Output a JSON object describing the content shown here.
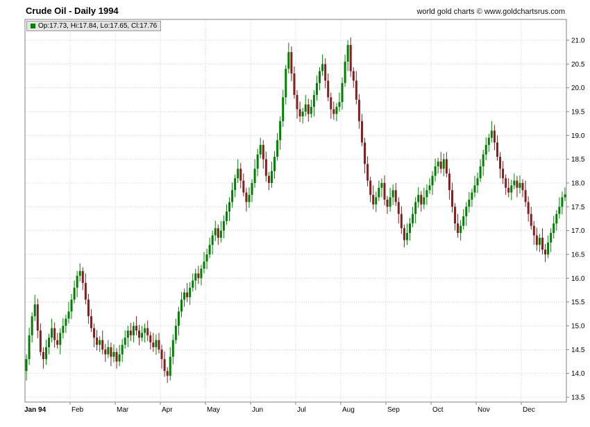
{
  "header": {
    "title": "Crude Oil - Daily 1994",
    "credit": "world gold charts © www.goldchartsrus.com"
  },
  "legend": {
    "swatch_color": "#008000",
    "text": "Op:17.73, Hi:17.84, Lo:17.65, Cl:17.76"
  },
  "chart_data": {
    "type": "candlestick",
    "title": "Crude Oil - Daily 1994",
    "xlabel": "",
    "ylabel": "",
    "ylim": [
      13.5,
      21.0
    ],
    "y_tick_step": 0.5,
    "grid": true,
    "legend_position": "top-left",
    "x_months": [
      "Jan 94",
      "Feb",
      "Mar",
      "Apr",
      "May",
      "Jun",
      "Jul",
      "Aug",
      "Sep",
      "Oct",
      "Nov",
      "Dec"
    ],
    "last_bar": {
      "open": 17.73,
      "high": 17.84,
      "low": 17.65,
      "close": 17.76
    },
    "first_open": 14.05,
    "closes": [
      14.3,
      14.8,
      15.2,
      15.45,
      14.9,
      14.45,
      14.3,
      14.55,
      14.75,
      14.95,
      14.7,
      14.6,
      14.85,
      15.0,
      15.15,
      15.3,
      15.55,
      15.8,
      16.05,
      16.15,
      15.9,
      15.55,
      15.2,
      14.95,
      14.75,
      14.6,
      14.7,
      14.5,
      14.4,
      14.55,
      14.35,
      14.45,
      14.25,
      14.4,
      14.6,
      14.75,
      14.9,
      14.8,
      15.0,
      14.9,
      14.75,
      14.85,
      14.95,
      14.8,
      14.65,
      14.55,
      14.7,
      14.5,
      14.3,
      14.05,
      13.95,
      14.35,
      14.7,
      15.0,
      15.3,
      15.55,
      15.7,
      15.6,
      15.8,
      15.95,
      16.1,
      16.0,
      16.2,
      16.35,
      16.5,
      16.7,
      16.9,
      17.05,
      16.85,
      17.0,
      17.2,
      17.4,
      17.6,
      17.85,
      18.1,
      18.3,
      18.05,
      17.8,
      17.6,
      17.75,
      18.0,
      18.3,
      18.6,
      18.8,
      18.5,
      18.15,
      18.0,
      18.25,
      18.55,
      18.9,
      19.3,
      19.8,
      20.4,
      20.75,
      20.3,
      19.85,
      19.55,
      19.4,
      19.5,
      19.65,
      19.45,
      19.6,
      19.85,
      20.1,
      20.35,
      20.5,
      20.15,
      19.8,
      19.55,
      19.45,
      19.6,
      19.7,
      20.1,
      20.55,
      20.9,
      20.35,
      20.15,
      19.75,
      19.3,
      18.85,
      18.4,
      18.05,
      17.75,
      17.55,
      17.7,
      17.9,
      18.0,
      17.65,
      17.5,
      17.7,
      17.85,
      17.6,
      17.35,
      17.05,
      16.8,
      16.95,
      17.15,
      17.35,
      17.6,
      17.75,
      17.55,
      17.7,
      17.85,
      17.95,
      18.15,
      18.35,
      18.45,
      18.3,
      18.5,
      18.2,
      17.85,
      17.5,
      17.15,
      16.95,
      17.1,
      17.3,
      17.5,
      17.65,
      17.8,
      17.95,
      18.1,
      18.35,
      18.6,
      18.8,
      18.95,
      19.1,
      18.85,
      18.55,
      18.3,
      18.1,
      17.9,
      17.8,
      17.95,
      18.05,
      17.9,
      18.0,
      17.85,
      17.6,
      17.35,
      17.1,
      16.9,
      16.7,
      16.85,
      16.6,
      16.5,
      16.75,
      16.95,
      17.15,
      17.35,
      17.5,
      17.7,
      17.76
    ],
    "wick_pattern": [
      0.1,
      0.16,
      0.08,
      0.2,
      0.12,
      0.15
    ],
    "colors": {
      "up": "#008000",
      "down": "#802020",
      "grid": "#c9c9c9",
      "frame": "#808080",
      "axis_text": "#000000",
      "background": "#ffffff"
    }
  }
}
